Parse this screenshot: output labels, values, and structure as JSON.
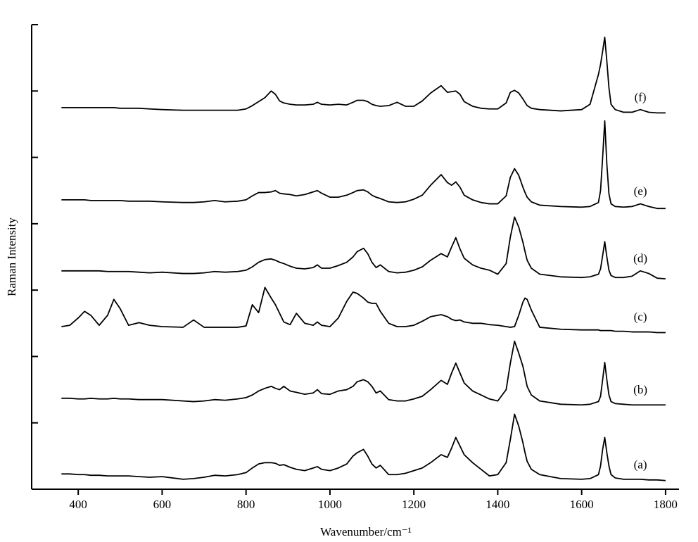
{
  "chart_data": {
    "type": "line",
    "x_label": "Wavenumber/cm⁻¹",
    "y_label": "Raman Intensity",
    "xlim": [
      289,
      1832
    ],
    "xticks": [
      400,
      600,
      800,
      1000,
      1200,
      1400,
      1600,
      1800
    ],
    "ylim": [
      0,
      7
    ],
    "yticks": [
      0,
      1,
      2,
      3,
      4,
      5,
      6,
      7
    ],
    "x": [
      360,
      380,
      400,
      415,
      430,
      450,
      470,
      485,
      500,
      520,
      545,
      570,
      600,
      650,
      675,
      700,
      725,
      750,
      780,
      800,
      815,
      830,
      845,
      860,
      870,
      880,
      890,
      905,
      920,
      940,
      960,
      970,
      980,
      1000,
      1020,
      1040,
      1055,
      1065,
      1080,
      1090,
      1100,
      1110,
      1120,
      1140,
      1160,
      1180,
      1200,
      1220,
      1240,
      1265,
      1280,
      1290,
      1300,
      1310,
      1320,
      1340,
      1360,
      1380,
      1400,
      1420,
      1430,
      1440,
      1450,
      1460,
      1465,
      1470,
      1480,
      1500,
      1550,
      1600,
      1620,
      1640,
      1645,
      1650,
      1655,
      1660,
      1665,
      1670,
      1680,
      1700,
      1720,
      1740,
      1760,
      1780,
      1800
    ],
    "series": [
      {
        "name": "(a)",
        "color": "#000000",
        "values": [
          0.23,
          0.23,
          0.22,
          0.22,
          0.21,
          0.21,
          0.2,
          0.2,
          0.2,
          0.2,
          0.19,
          0.18,
          0.19,
          0.15,
          0.16,
          0.18,
          0.21,
          0.2,
          0.22,
          0.25,
          0.32,
          0.38,
          0.4,
          0.4,
          0.39,
          0.36,
          0.37,
          0.33,
          0.3,
          0.28,
          0.32,
          0.34,
          0.3,
          0.28,
          0.32,
          0.38,
          0.5,
          0.55,
          0.6,
          0.5,
          0.38,
          0.32,
          0.36,
          0.22,
          0.22,
          0.24,
          0.28,
          0.32,
          0.4,
          0.52,
          0.48,
          0.62,
          0.78,
          0.65,
          0.52,
          0.4,
          0.3,
          0.2,
          0.22,
          0.4,
          0.75,
          1.13,
          0.95,
          0.7,
          0.55,
          0.42,
          0.3,
          0.22,
          0.16,
          0.15,
          0.16,
          0.22,
          0.35,
          0.6,
          0.78,
          0.55,
          0.35,
          0.22,
          0.17,
          0.15,
          0.15,
          0.15,
          0.14,
          0.14,
          0.13
        ]
      },
      {
        "name": "(b)",
        "color": "#000000",
        "values": [
          1.37,
          1.37,
          1.36,
          1.36,
          1.37,
          1.36,
          1.36,
          1.37,
          1.36,
          1.36,
          1.35,
          1.35,
          1.35,
          1.33,
          1.32,
          1.33,
          1.35,
          1.34,
          1.36,
          1.38,
          1.42,
          1.48,
          1.52,
          1.55,
          1.52,
          1.5,
          1.55,
          1.48,
          1.46,
          1.43,
          1.45,
          1.5,
          1.44,
          1.43,
          1.48,
          1.5,
          1.55,
          1.62,
          1.65,
          1.62,
          1.55,
          1.45,
          1.48,
          1.35,
          1.33,
          1.33,
          1.36,
          1.4,
          1.5,
          1.64,
          1.58,
          1.75,
          1.9,
          1.75,
          1.6,
          1.48,
          1.42,
          1.36,
          1.33,
          1.5,
          1.9,
          2.23,
          2.05,
          1.85,
          1.7,
          1.55,
          1.42,
          1.33,
          1.28,
          1.27,
          1.28,
          1.32,
          1.4,
          1.65,
          1.91,
          1.65,
          1.42,
          1.32,
          1.29,
          1.28,
          1.27,
          1.27,
          1.27,
          1.27,
          1.27
        ]
      },
      {
        "name": "(c)",
        "color": "#000000",
        "values": [
          2.45,
          2.47,
          2.58,
          2.68,
          2.62,
          2.47,
          2.62,
          2.86,
          2.72,
          2.47,
          2.51,
          2.47,
          2.45,
          2.44,
          2.55,
          2.44,
          2.44,
          2.44,
          2.44,
          2.46,
          2.78,
          2.66,
          3.04,
          2.88,
          2.78,
          2.65,
          2.52,
          2.48,
          2.65,
          2.5,
          2.47,
          2.52,
          2.47,
          2.45,
          2.58,
          2.83,
          2.97,
          2.95,
          2.88,
          2.82,
          2.8,
          2.8,
          2.68,
          2.5,
          2.45,
          2.45,
          2.47,
          2.53,
          2.6,
          2.63,
          2.6,
          2.56,
          2.54,
          2.55,
          2.52,
          2.5,
          2.5,
          2.48,
          2.47,
          2.45,
          2.44,
          2.45,
          2.62,
          2.82,
          2.88,
          2.86,
          2.7,
          2.44,
          2.41,
          2.4,
          2.4,
          2.4,
          2.39,
          2.39,
          2.39,
          2.39,
          2.39,
          2.39,
          2.38,
          2.38,
          2.37,
          2.37,
          2.37,
          2.36,
          2.36
        ]
      },
      {
        "name": "(d)",
        "color": "#000000",
        "values": [
          3.29,
          3.29,
          3.29,
          3.29,
          3.29,
          3.29,
          3.28,
          3.28,
          3.28,
          3.28,
          3.27,
          3.26,
          3.27,
          3.25,
          3.25,
          3.26,
          3.28,
          3.27,
          3.28,
          3.3,
          3.35,
          3.42,
          3.46,
          3.47,
          3.45,
          3.42,
          3.4,
          3.36,
          3.33,
          3.32,
          3.34,
          3.38,
          3.33,
          3.33,
          3.37,
          3.42,
          3.5,
          3.58,
          3.63,
          3.55,
          3.42,
          3.34,
          3.38,
          3.28,
          3.26,
          3.27,
          3.3,
          3.35,
          3.45,
          3.55,
          3.5,
          3.65,
          3.79,
          3.62,
          3.48,
          3.38,
          3.33,
          3.3,
          3.24,
          3.4,
          3.8,
          4.1,
          3.95,
          3.72,
          3.58,
          3.45,
          3.33,
          3.24,
          3.2,
          3.19,
          3.2,
          3.24,
          3.32,
          3.52,
          3.73,
          3.5,
          3.3,
          3.22,
          3.19,
          3.19,
          3.21,
          3.29,
          3.25,
          3.18,
          3.17
        ]
      },
      {
        "name": "(e)",
        "color": "#000000",
        "values": [
          4.36,
          4.36,
          4.36,
          4.36,
          4.35,
          4.35,
          4.35,
          4.35,
          4.35,
          4.34,
          4.34,
          4.34,
          4.33,
          4.32,
          4.32,
          4.33,
          4.35,
          4.33,
          4.34,
          4.36,
          4.42,
          4.47,
          4.47,
          4.48,
          4.5,
          4.46,
          4.45,
          4.44,
          4.42,
          4.44,
          4.48,
          4.5,
          4.46,
          4.4,
          4.4,
          4.43,
          4.47,
          4.5,
          4.51,
          4.48,
          4.43,
          4.4,
          4.38,
          4.33,
          4.32,
          4.33,
          4.37,
          4.43,
          4.58,
          4.74,
          4.62,
          4.58,
          4.63,
          4.55,
          4.43,
          4.36,
          4.32,
          4.3,
          4.3,
          4.42,
          4.7,
          4.83,
          4.73,
          4.55,
          4.47,
          4.4,
          4.33,
          4.28,
          4.26,
          4.25,
          4.26,
          4.32,
          4.5,
          5.0,
          5.55,
          4.9,
          4.45,
          4.3,
          4.26,
          4.25,
          4.26,
          4.3,
          4.26,
          4.23,
          4.23
        ]
      },
      {
        "name": "(f)",
        "color": "#000000",
        "values": [
          5.75,
          5.75,
          5.75,
          5.75,
          5.75,
          5.75,
          5.75,
          5.75,
          5.74,
          5.74,
          5.74,
          5.73,
          5.72,
          5.71,
          5.71,
          5.71,
          5.71,
          5.71,
          5.71,
          5.73,
          5.78,
          5.84,
          5.9,
          6.0,
          5.95,
          5.85,
          5.82,
          5.8,
          5.79,
          5.79,
          5.8,
          5.83,
          5.8,
          5.79,
          5.8,
          5.79,
          5.83,
          5.86,
          5.86,
          5.84,
          5.8,
          5.78,
          5.77,
          5.78,
          5.83,
          5.77,
          5.77,
          5.85,
          5.97,
          6.08,
          5.98,
          5.99,
          6.0,
          5.95,
          5.84,
          5.77,
          5.74,
          5.73,
          5.73,
          5.82,
          5.98,
          6.01,
          5.97,
          5.88,
          5.83,
          5.78,
          5.74,
          5.72,
          5.7,
          5.72,
          5.8,
          6.25,
          6.4,
          6.6,
          6.81,
          6.45,
          6.05,
          5.8,
          5.72,
          5.68,
          5.68,
          5.72,
          5.68,
          5.67,
          5.67
        ]
      }
    ]
  }
}
